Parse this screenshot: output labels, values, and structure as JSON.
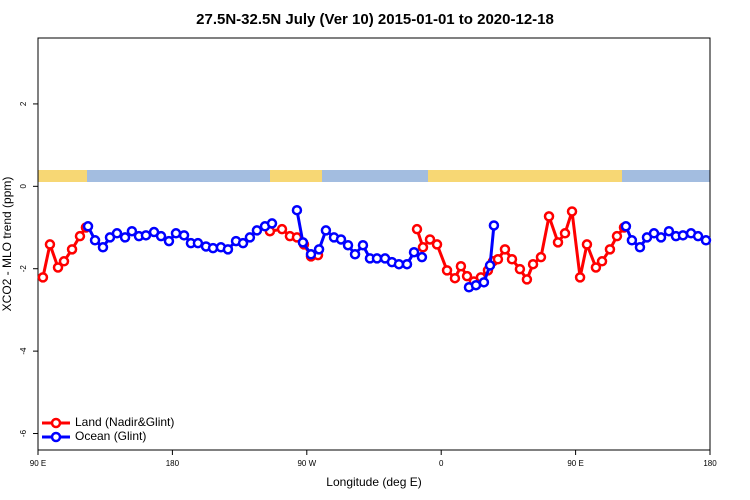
{
  "chart_data": {
    "type": "line",
    "title": "27.5N-32.5N July (Ver 10)   2015-01-01 to 2020-12-18",
    "x_label": "Longitude (deg E)",
    "y_label": "XCO2 - MLO trend (ppm)",
    "xlim": [
      90,
      540
    ],
    "ylim": [
      -6.4,
      3.6
    ],
    "xticks": [
      {
        "value": 90,
        "label": "90 E"
      },
      180,
      {
        "value": 270,
        "label": "90 W"
      },
      {
        "value": 360,
        "label": "0"
      },
      {
        "value": 450,
        "label": "90 E"
      },
      {
        "value": 540,
        "label": "180"
      }
    ],
    "yticks": [
      -6,
      -4,
      -2,
      0,
      2
    ],
    "legend": "bottom-left",
    "series": [
      {
        "name": "Land (Nadir&Glint)",
        "color": "#ff0000",
        "x": [
          93.3,
          98.0,
          103.4,
          107.4,
          112.8,
          118.1,
          122.1,
          null,
          245.3,
          253.4,
          258.7,
          263.4,
          268.1,
          272.8,
          277.5,
          null,
          343.8,
          347.8,
          352.5,
          357.2,
          363.9,
          369.2,
          373.2,
          377.3,
          381.9,
          386.6,
          391.3,
          394.7,
          398.0,
          402.7,
          407.4,
          412.7,
          417.4,
          421.5,
          426.8,
          432.2,
          438.2,
          442.9,
          447.6,
          453.0,
          457.6,
          463.6,
          467.7,
          473.0,
          477.7,
          482.4
        ],
        "values": [
          -2.21,
          -1.41,
          -1.97,
          -1.82,
          -1.53,
          -1.21,
          -1.0,
          null,
          -1.09,
          -1.04,
          -1.21,
          -1.24,
          -1.41,
          -1.7,
          -1.67,
          null,
          -1.04,
          -1.48,
          -1.29,
          -1.41,
          -2.04,
          -2.23,
          -1.94,
          -2.18,
          -2.31,
          -2.21,
          -2.04,
          -1.82,
          -1.77,
          -1.53,
          -1.77,
          -2.01,
          -2.26,
          -1.89,
          -1.72,
          -0.73,
          -1.36,
          -1.14,
          -0.61,
          -2.21,
          -1.41,
          -1.97,
          -1.82,
          -1.53,
          -1.21,
          -1.0
        ]
      },
      {
        "name": "Ocean (Glint)",
        "color": "#0000ff",
        "x": [
          123.5,
          128.2,
          133.5,
          138.2,
          142.9,
          148.3,
          152.9,
          157.6,
          162.3,
          167.7,
          172.4,
          177.7,
          182.4,
          187.8,
          192.4,
          197.1,
          202.5,
          207.2,
          212.5,
          217.2,
          222.6,
          227.3,
          231.9,
          236.6,
          242.0,
          246.7,
          null,
          263.4,
          267.4,
          272.8,
          278.2,
          282.8,
          288.2,
          292.9,
          297.6,
          302.3,
          307.6,
          312.3,
          317.0,
          322.4,
          327.0,
          331.7,
          337.1,
          341.8,
          347.1,
          null,
          378.6,
          383.3,
          388.6,
          392.7,
          395.3,
          null,
          483.7,
          487.7,
          493.1,
          497.8,
          502.5,
          507.2,
          512.5,
          517.2,
          521.9,
          527.3,
          532.0,
          537.3
        ],
        "values": [
          -0.97,
          -1.31,
          -1.48,
          -1.24,
          -1.14,
          -1.24,
          -1.09,
          -1.21,
          -1.19,
          -1.11,
          -1.21,
          -1.33,
          -1.14,
          -1.19,
          -1.38,
          -1.38,
          -1.46,
          -1.5,
          -1.48,
          -1.53,
          -1.33,
          -1.38,
          -1.24,
          -1.07,
          -0.97,
          -0.9,
          null,
          -0.58,
          -1.36,
          -1.65,
          -1.53,
          -1.07,
          -1.24,
          -1.29,
          -1.43,
          -1.65,
          -1.43,
          -1.75,
          -1.75,
          -1.75,
          -1.84,
          -1.89,
          -1.89,
          -1.6,
          -1.72,
          null,
          -2.45,
          -2.4,
          -2.33,
          -1.92,
          -0.95,
          null,
          -0.97,
          -1.31,
          -1.48,
          -1.24,
          -1.14,
          -1.24,
          -1.09,
          -1.21,
          -1.19,
          -1.14,
          -1.21,
          -1.31
        ]
      }
    ]
  }
}
